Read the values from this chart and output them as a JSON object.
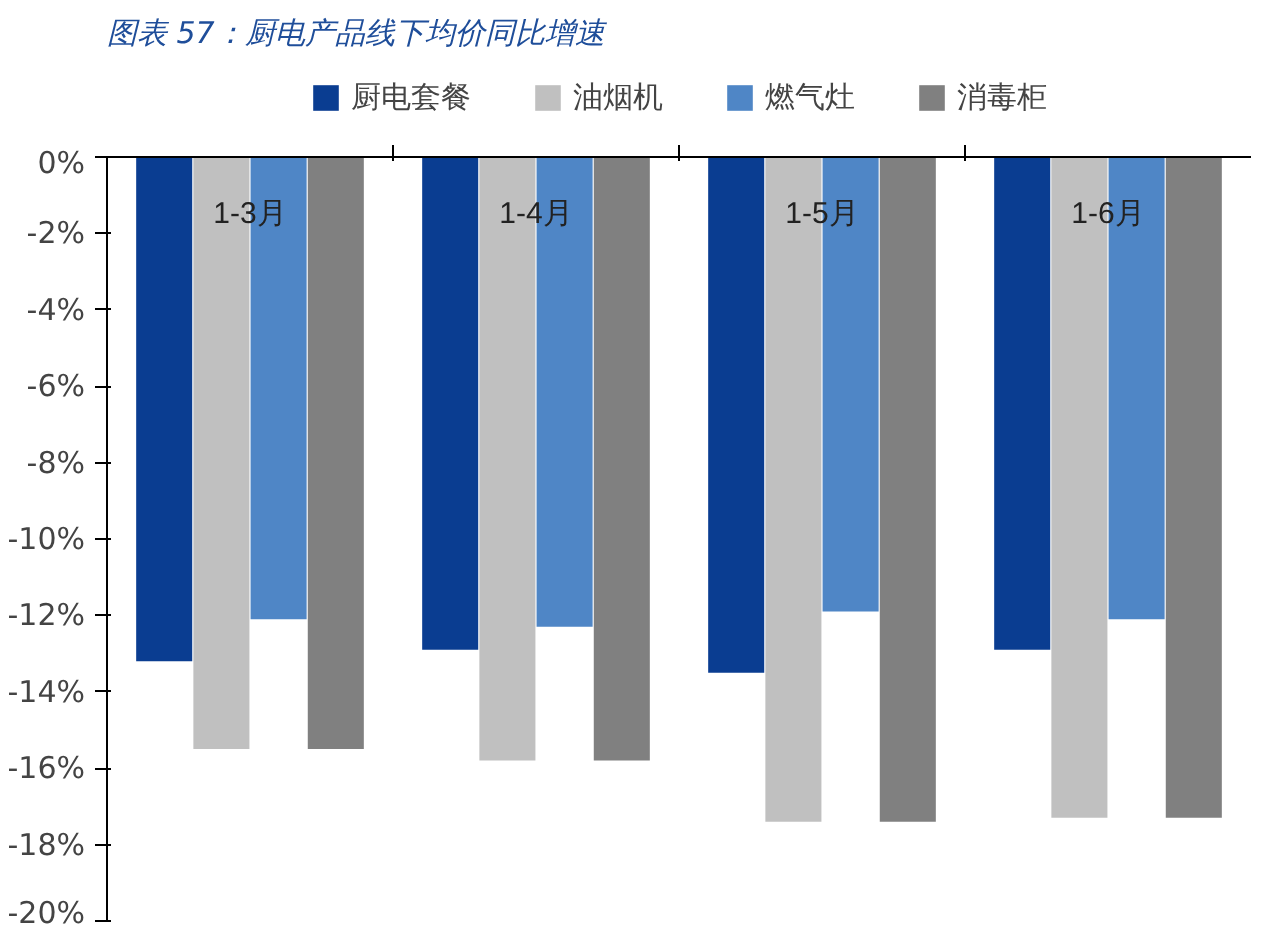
{
  "chart_data": {
    "type": "bar",
    "title": "图表 57：厨电产品线下均价同比增速",
    "categories": [
      "1-3月",
      "1-4月",
      "1-5月",
      "1-6月"
    ],
    "series": [
      {
        "name": "厨电套餐",
        "color": "#0a3d91",
        "values": [
          -13.2,
          -12.9,
          -13.5,
          -12.9
        ]
      },
      {
        "name": "油烟机",
        "color": "#c0c0c0",
        "values": [
          -15.5,
          -15.8,
          -17.4,
          -17.3
        ]
      },
      {
        "name": "燃气灶",
        "color": "#4f86c6",
        "values": [
          -12.1,
          -12.3,
          -11.9,
          -12.1
        ]
      },
      {
        "name": "消毒柜",
        "color": "#808080",
        "values": [
          -15.5,
          -15.8,
          -17.4,
          -17.3
        ]
      }
    ],
    "ylim": [
      -20,
      0
    ],
    "yticks": [
      {
        "value": 0,
        "label": "0%"
      },
      {
        "value": -2,
        "label": "-2%"
      },
      {
        "value": -4,
        "label": "-4%"
      },
      {
        "value": -6,
        "label": "-6%"
      },
      {
        "value": -8,
        "label": "-8%"
      },
      {
        "value": -10,
        "label": "-10%"
      },
      {
        "value": -12,
        "label": "-12%"
      },
      {
        "value": -14,
        "label": "-14%"
      },
      {
        "value": -16,
        "label": "-16%"
      },
      {
        "value": -18,
        "label": "-18%"
      },
      {
        "value": -20,
        "label": "-20%"
      }
    ],
    "legend": "top",
    "grid": false
  }
}
